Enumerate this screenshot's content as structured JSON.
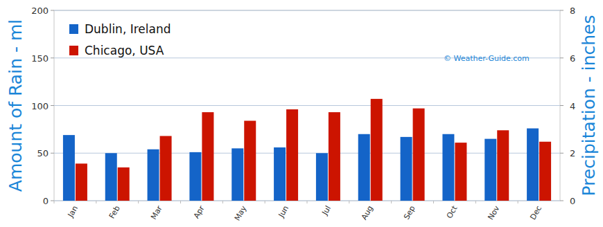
{
  "chart_data": {
    "type": "bar",
    "categories": [
      "Jan",
      "Feb",
      "Mar",
      "Apr",
      "May",
      "Jun",
      "Jul",
      "Aug",
      "Sep",
      "Oct",
      "Nov",
      "Dec"
    ],
    "series": [
      {
        "name": "Dublin, Ireland",
        "color": "#1464c8",
        "values": [
          69,
          50,
          54,
          51,
          55,
          56,
          50,
          70,
          67,
          70,
          65,
          76
        ]
      },
      {
        "name": "Chicago, USA",
        "color": "#cc1400",
        "values": [
          39,
          35,
          68,
          93,
          84,
          96,
          93,
          107,
          97,
          61,
          74,
          62
        ]
      }
    ],
    "ylabel": "Amount of Rain - ml",
    "y2label": "Precipitation - inches",
    "ylim": [
      0,
      200
    ],
    "yticks": [
      0,
      50,
      100,
      150,
      200
    ],
    "y2lim": [
      0,
      8
    ],
    "y2ticks": [
      0,
      2,
      4,
      6,
      8
    ],
    "annotations": [
      "© Weather-Guide.com"
    ],
    "grid": true,
    "legend": "upper left"
  }
}
